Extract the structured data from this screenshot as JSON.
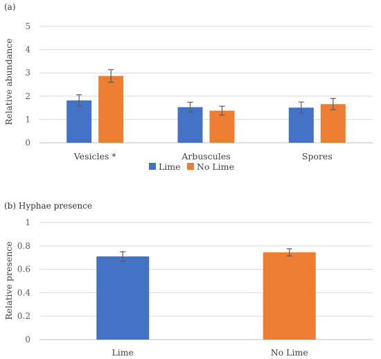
{
  "colors": {
    "lime": "#4472C4",
    "no_lime": "#ED7D31"
  },
  "chart_data": [
    {
      "type": "bar",
      "panel_label": "(a)",
      "title": "",
      "xlabel": "",
      "ylabel": "Relative abundance",
      "ylim": [
        0,
        5
      ],
      "yticks": [
        "0",
        "1",
        "2",
        "3",
        "4",
        "5"
      ],
      "grid": true,
      "legend": "bottom",
      "categories": [
        "Vesicles *",
        "Arbuscules",
        "Spores"
      ],
      "series": [
        {
          "name": "Lime",
          "values": [
            1.82,
            1.53,
            1.51
          ],
          "errors": [
            0.24,
            0.21,
            0.24
          ]
        },
        {
          "name": "No Lime",
          "values": [
            2.87,
            1.38,
            1.66
          ],
          "errors": [
            0.27,
            0.19,
            0.24
          ]
        }
      ]
    },
    {
      "type": "bar",
      "panel_label": "(b) Hyphae presence",
      "title": "",
      "xlabel": "",
      "ylabel": "Relative presence",
      "ylim": [
        0,
        1
      ],
      "yticks": [
        "0",
        "0.2",
        "0.4",
        "0.6",
        "0.8",
        "1"
      ],
      "grid": true,
      "categories": [
        "Lime",
        "No Lime"
      ],
      "values": [
        0.71,
        0.745
      ],
      "errors": [
        0.04,
        0.03
      ]
    }
  ]
}
